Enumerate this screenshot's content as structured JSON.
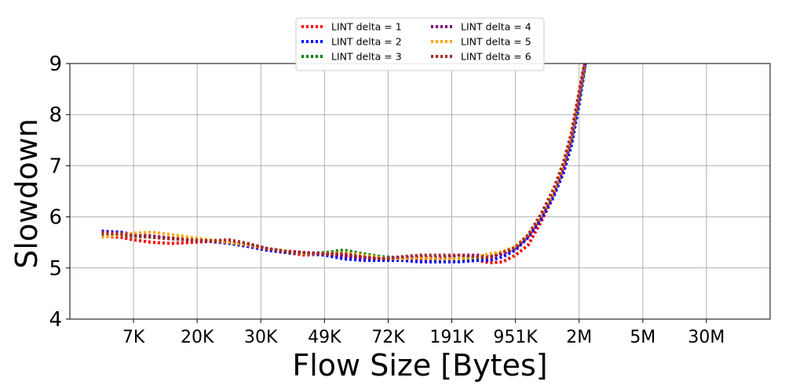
{
  "chart_data": {
    "type": "line",
    "xlabel": "Flow Size [Bytes]",
    "ylabel": "Slowdown",
    "ylim": [
      4,
      9
    ],
    "yticks": [
      "4",
      "5",
      "6",
      "7",
      "8",
      "9"
    ],
    "xticks": [
      "7K",
      "20K",
      "30K",
      "49K",
      "72K",
      "191K",
      "951K",
      "2M",
      "5M",
      "30M"
    ],
    "xrange": [
      0,
      11
    ],
    "grid": true,
    "legend_position": "top-center",
    "line_style": "dotted",
    "series": [
      {
        "name": "LINT delta = 1",
        "color": "#ff0000",
        "x": [
          0.5,
          0.8,
          1.0,
          1.3,
          1.6,
          1.9,
          2.2,
          2.5,
          2.8,
          3.1,
          3.4,
          3.7,
          4.0,
          4.3,
          4.6,
          4.9,
          5.2,
          5.5,
          5.8,
          6.1,
          6.4,
          6.6,
          6.8,
          7.0,
          7.2,
          7.4,
          7.6,
          7.75,
          7.88,
          8.0,
          8.1
        ],
        "y": [
          5.62,
          5.6,
          5.55,
          5.5,
          5.48,
          5.5,
          5.52,
          5.5,
          5.43,
          5.35,
          5.3,
          5.25,
          5.28,
          5.22,
          5.2,
          5.18,
          5.17,
          5.15,
          5.15,
          5.17,
          5.15,
          5.1,
          5.12,
          5.25,
          5.45,
          5.9,
          6.4,
          6.9,
          7.5,
          8.3,
          9.1
        ]
      },
      {
        "name": "LINT delta = 2",
        "color": "#0000ff",
        "x": [
          0.5,
          0.8,
          1.0,
          1.3,
          1.6,
          1.9,
          2.2,
          2.5,
          2.8,
          3.1,
          3.4,
          3.7,
          4.0,
          4.3,
          4.6,
          4.9,
          5.2,
          5.5,
          5.8,
          6.1,
          6.4,
          6.6,
          6.8,
          7.0,
          7.2,
          7.4,
          7.6,
          7.75,
          7.88,
          8.0,
          8.1
        ],
        "y": [
          5.72,
          5.7,
          5.65,
          5.62,
          5.58,
          5.55,
          5.52,
          5.48,
          5.42,
          5.35,
          5.3,
          5.28,
          5.25,
          5.18,
          5.15,
          5.15,
          5.15,
          5.12,
          5.12,
          5.12,
          5.15,
          5.15,
          5.22,
          5.35,
          5.6,
          5.95,
          6.4,
          6.85,
          7.4,
          8.2,
          9.0
        ]
      },
      {
        "name": "LINT delta = 3",
        "color": "#008000",
        "x": [
          0.5,
          0.8,
          1.0,
          1.3,
          1.6,
          1.9,
          2.2,
          2.5,
          2.8,
          3.1,
          3.4,
          3.7,
          4.0,
          4.3,
          4.6,
          4.9,
          5.2,
          5.5,
          5.8,
          6.1,
          6.4,
          6.6,
          6.8,
          7.0,
          7.2,
          7.4,
          7.6,
          7.75,
          7.88,
          8.0,
          8.1
        ],
        "y": [
          5.65,
          5.65,
          5.62,
          5.6,
          5.57,
          5.55,
          5.53,
          5.5,
          5.45,
          5.38,
          5.32,
          5.28,
          5.3,
          5.35,
          5.28,
          5.22,
          5.2,
          5.2,
          5.18,
          5.18,
          5.2,
          5.22,
          5.3,
          5.4,
          5.65,
          6.0,
          6.45,
          6.95,
          7.5,
          8.3,
          9.0
        ]
      },
      {
        "name": "LINT delta = 4",
        "color": "#800080",
        "x": [
          0.5,
          0.8,
          1.0,
          1.3,
          1.6,
          1.9,
          2.2,
          2.5,
          2.8,
          3.1,
          3.4,
          3.7,
          4.0,
          4.3,
          4.6,
          4.9,
          5.2,
          5.5,
          5.8,
          6.1,
          6.4,
          6.6,
          6.8,
          7.0,
          7.2,
          7.4,
          7.6,
          7.75,
          7.88,
          8.0,
          8.1
        ],
        "y": [
          5.7,
          5.68,
          5.65,
          5.62,
          5.58,
          5.55,
          5.52,
          5.5,
          5.45,
          5.38,
          5.33,
          5.3,
          5.28,
          5.25,
          5.2,
          5.18,
          5.2,
          5.22,
          5.2,
          5.25,
          5.25,
          5.22,
          5.28,
          5.38,
          5.62,
          5.98,
          6.45,
          6.95,
          7.55,
          8.35,
          9.05
        ]
      },
      {
        "name": "LINT delta = 5",
        "color": "#ffa500",
        "x": [
          0.5,
          0.8,
          1.0,
          1.3,
          1.6,
          1.9,
          2.2,
          2.5,
          2.8,
          3.1,
          3.4,
          3.7,
          4.0,
          4.3,
          4.6,
          4.9,
          5.2,
          5.5,
          5.8,
          6.1,
          6.4,
          6.6,
          6.8,
          7.0,
          7.2,
          7.4,
          7.6,
          7.75,
          7.88,
          8.0,
          8.1
        ],
        "y": [
          5.6,
          5.65,
          5.68,
          5.7,
          5.65,
          5.6,
          5.55,
          5.5,
          5.45,
          5.38,
          5.33,
          5.28,
          5.28,
          5.3,
          5.25,
          5.2,
          5.18,
          5.2,
          5.18,
          5.18,
          5.22,
          5.28,
          5.32,
          5.42,
          5.65,
          6.02,
          6.48,
          7.0,
          7.6,
          8.4,
          9.05
        ]
      },
      {
        "name": "LINT delta = 6",
        "color": "#a52a2a",
        "x": [
          0.5,
          0.8,
          1.0,
          1.3,
          1.6,
          1.9,
          2.2,
          2.5,
          2.8,
          3.1,
          3.4,
          3.7,
          4.0,
          4.3,
          4.6,
          4.9,
          5.2,
          5.5,
          5.8,
          6.1,
          6.4,
          6.6,
          6.8,
          7.0,
          7.2,
          7.4,
          7.6,
          7.75,
          7.88,
          8.0,
          8.1
        ],
        "y": [
          5.68,
          5.66,
          5.63,
          5.6,
          5.57,
          5.55,
          5.53,
          5.55,
          5.48,
          5.38,
          5.32,
          5.3,
          5.27,
          5.28,
          5.22,
          5.18,
          5.22,
          5.25,
          5.25,
          5.25,
          5.22,
          5.2,
          5.3,
          5.4,
          5.65,
          6.05,
          6.55,
          7.05,
          7.65,
          8.45,
          9.1
        ]
      }
    ]
  }
}
